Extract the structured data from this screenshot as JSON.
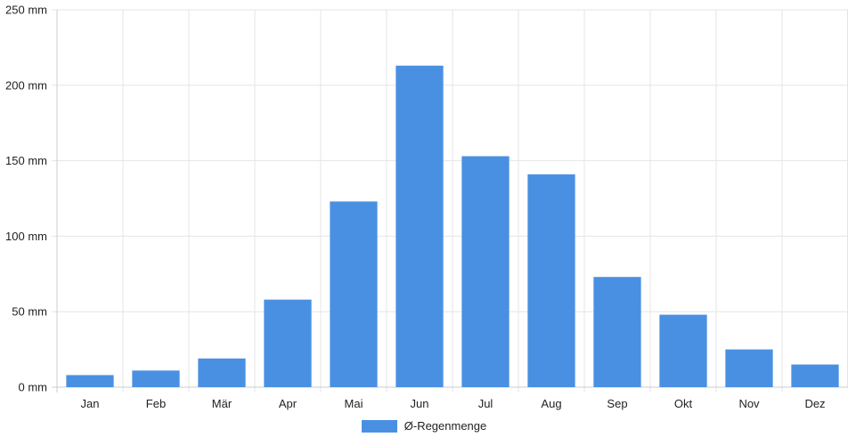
{
  "chart_data": {
    "type": "bar",
    "categories": [
      "Jan",
      "Feb",
      "Mär",
      "Apr",
      "Mai",
      "Jun",
      "Jul",
      "Aug",
      "Sep",
      "Okt",
      "Nov",
      "Dez"
    ],
    "series": [
      {
        "name": "Ø-Regenmenge",
        "values": [
          8,
          11,
          19,
          58,
          123,
          213,
          153,
          141,
          73,
          48,
          25,
          15
        ]
      }
    ],
    "y_ticks": [
      "0 mm",
      "50 mm",
      "100 mm",
      "150 mm",
      "200 mm",
      "250 mm"
    ],
    "ylim": [
      0,
      250
    ],
    "unit": "mm",
    "grid": true,
    "legend_position": "bottom-center",
    "colors": {
      "bar": "#4a90e2",
      "grid": "#e5e5e5",
      "axis": "#cccccc"
    }
  }
}
